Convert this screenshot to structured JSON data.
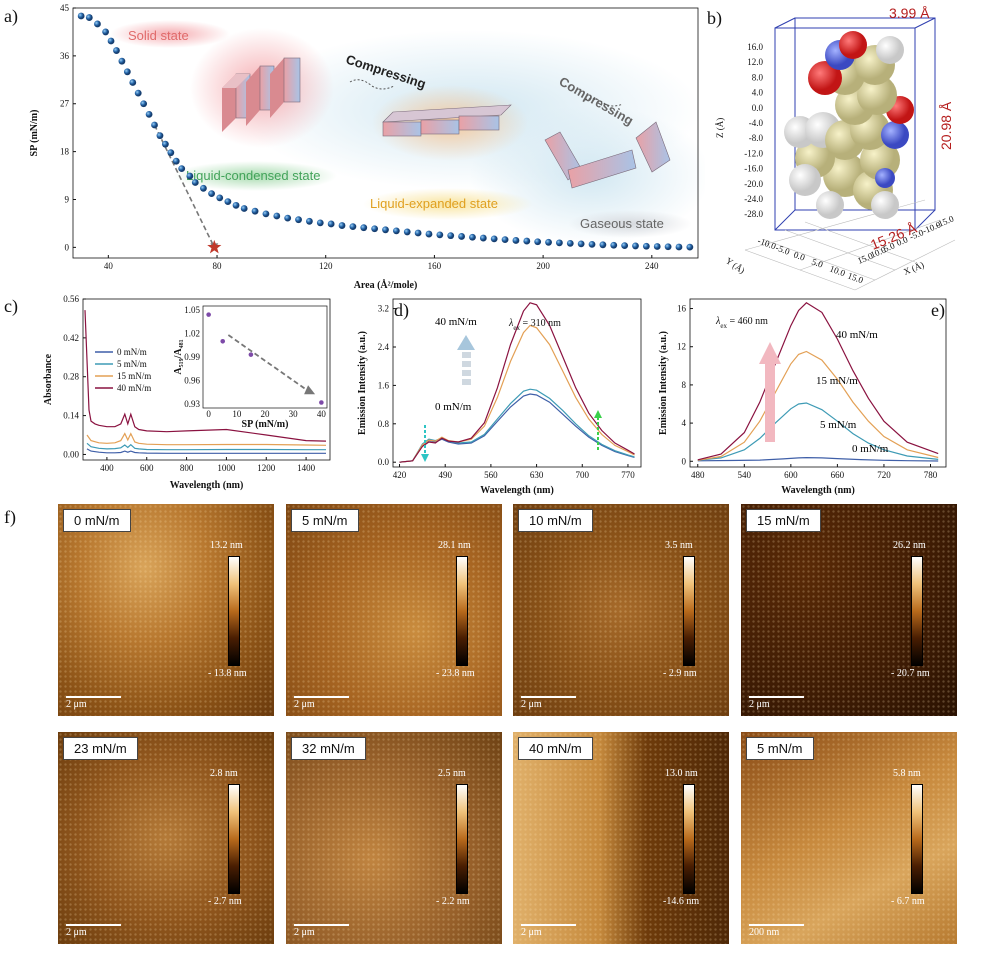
{
  "panel_labels": {
    "a": "a)",
    "b": "b)",
    "c": "c)",
    "d": "d)",
    "e": "e)",
    "f": "f)"
  },
  "colors": {
    "isotherm_marker": "#2a6cb0",
    "series_0": "#3f5fa8",
    "series_5": "#3e9bb5",
    "series_15": "#e3a055",
    "series_40": "#8a1240",
    "star": "#c0392b"
  },
  "chart_data": [
    {
      "id": "a",
      "type": "scatter",
      "xlabel": "Area (Å²/mole)",
      "ylabel": "SP (mN/m)",
      "xlim": [
        27,
        257
      ],
      "ylim": [
        -2,
        45
      ],
      "xticks": [
        40,
        80,
        120,
        160,
        200,
        240
      ],
      "yticks": [
        0,
        9,
        18,
        27,
        36,
        45
      ],
      "points": [
        [
          30,
          43.5
        ],
        [
          33,
          43.2
        ],
        [
          36,
          42
        ],
        [
          39,
          40.5
        ],
        [
          41,
          38.8
        ],
        [
          43,
          37
        ],
        [
          45,
          35
        ],
        [
          47,
          33
        ],
        [
          49,
          31
        ],
        [
          51,
          29
        ],
        [
          53,
          27
        ],
        [
          55,
          25
        ],
        [
          57,
          23
        ],
        [
          59,
          21
        ],
        [
          61,
          19.4
        ],
        [
          63,
          17.8
        ],
        [
          65,
          16.2
        ],
        [
          67,
          14.8
        ],
        [
          70,
          13.4
        ],
        [
          72,
          12.2
        ],
        [
          75,
          11.1
        ],
        [
          78,
          10.1
        ],
        [
          81,
          9.3
        ],
        [
          84,
          8.6
        ],
        [
          87,
          7.9
        ],
        [
          90,
          7.3
        ],
        [
          94,
          6.8
        ],
        [
          98,
          6.3
        ],
        [
          102,
          5.9
        ],
        [
          106,
          5.5
        ],
        [
          110,
          5.2
        ],
        [
          114,
          4.9
        ],
        [
          118,
          4.6
        ],
        [
          122,
          4.4
        ],
        [
          126,
          4.1
        ],
        [
          130,
          3.9
        ],
        [
          134,
          3.7
        ],
        [
          138,
          3.5
        ],
        [
          142,
          3.3
        ],
        [
          146,
          3.1
        ],
        [
          150,
          2.9
        ],
        [
          154,
          2.7
        ],
        [
          158,
          2.5
        ],
        [
          162,
          2.35
        ],
        [
          166,
          2.2
        ],
        [
          170,
          2.05
        ],
        [
          174,
          1.9
        ],
        [
          178,
          1.75
        ],
        [
          182,
          1.6
        ],
        [
          186,
          1.45
        ],
        [
          190,
          1.3
        ],
        [
          194,
          1.18
        ],
        [
          198,
          1.06
        ],
        [
          202,
          0.95
        ],
        [
          206,
          0.85
        ],
        [
          210,
          0.75
        ],
        [
          214,
          0.65
        ],
        [
          218,
          0.56
        ],
        [
          222,
          0.48
        ],
        [
          226,
          0.4
        ],
        [
          230,
          0.33
        ],
        [
          234,
          0.27
        ],
        [
          238,
          0.21
        ],
        [
          242,
          0.16
        ],
        [
          246,
          0.11
        ],
        [
          250,
          0.07
        ],
        [
          254,
          0.04
        ]
      ],
      "extrapolation_point": [
        79,
        0
      ],
      "state_labels": [
        "Solid state",
        "Liquid-condensed state",
        "Liquid-expanded state",
        "Gaseous state"
      ],
      "annotations": [
        "Compressing",
        "Compressing"
      ]
    },
    {
      "id": "b",
      "type": "diagram",
      "dims": [
        "3.99 Å",
        "20.98 Å",
        "15.26 Å"
      ],
      "zlabel": "Z (Å)",
      "xlabel": "X (Å)",
      "ylabel": "Y (Å)",
      "zticks": [
        "16.0",
        "12.0",
        "8.0",
        "4.0",
        "0.0",
        "-4.0",
        "-8.0",
        "-12.0",
        "-16.0",
        "-20.0",
        "-24.0",
        "-28.0"
      ],
      "xticks": [
        "-15.0",
        "-10.0",
        "-5.0",
        "0.0",
        "5.0",
        "10.0",
        "15.0"
      ],
      "yticks": [
        "-10.0",
        "-5.0",
        "0.0",
        "5.0",
        "10.0",
        "15.0"
      ]
    },
    {
      "id": "c",
      "type": "line",
      "xlabel": "Wavelength (nm)",
      "ylabel": "Absorbance",
      "xlim": [
        280,
        1520
      ],
      "ylim": [
        -0.02,
        0.56
      ],
      "xticks": [
        400,
        600,
        800,
        1000,
        1200,
        1400
      ],
      "yticks": [
        "0.00",
        "0.14",
        "0.28",
        "0.42",
        "0.56"
      ],
      "legend": [
        "0 mN/m",
        "5 mN/m",
        "15 mN/m",
        "40 mN/m"
      ],
      "series": [
        {
          "name": "0 mN/m",
          "x": [
            300,
            320,
            360,
            400,
            440,
            470,
            490,
            505,
            520,
            540,
            560,
            600,
            700,
            800,
            1000,
            1200,
            1400,
            1500
          ],
          "y": [
            0.02,
            0.012,
            0.008,
            0.006,
            0.006,
            0.007,
            0.012,
            0.008,
            0.012,
            0.007,
            0.006,
            0.005,
            0.004,
            0.004,
            0.004,
            0.004,
            0.004,
            0.004
          ]
        },
        {
          "name": "5 mN/m",
          "x": [
            300,
            320,
            360,
            400,
            440,
            470,
            490,
            505,
            520,
            540,
            560,
            600,
            700,
            800,
            1000,
            1200,
            1400,
            1500
          ],
          "y": [
            0.04,
            0.028,
            0.022,
            0.02,
            0.021,
            0.024,
            0.034,
            0.025,
            0.035,
            0.022,
            0.02,
            0.018,
            0.017,
            0.017,
            0.018,
            0.018,
            0.017,
            0.017
          ]
        },
        {
          "name": "15 mN/m",
          "x": [
            300,
            320,
            360,
            400,
            440,
            470,
            490,
            505,
            520,
            540,
            560,
            600,
            700,
            800,
            1000,
            1200,
            1400,
            1500
          ],
          "y": [
            0.07,
            0.05,
            0.042,
            0.04,
            0.042,
            0.05,
            0.075,
            0.052,
            0.075,
            0.045,
            0.04,
            0.037,
            0.035,
            0.035,
            0.036,
            0.036,
            0.034,
            0.033
          ]
        },
        {
          "name": "40 mN/m",
          "x": [
            290,
            300,
            310,
            320,
            340,
            360,
            400,
            440,
            470,
            490,
            505,
            520,
            540,
            560,
            600,
            700,
            800,
            1000,
            1200,
            1400,
            1500
          ],
          "y": [
            0.52,
            0.34,
            0.16,
            0.12,
            0.11,
            0.105,
            0.1,
            0.1,
            0.11,
            0.145,
            0.11,
            0.145,
            0.1,
            0.09,
            0.085,
            0.082,
            0.085,
            0.09,
            0.07,
            0.05,
            0.048
          ]
        }
      ],
      "inset": {
        "xlabel": "SP (mN/m)",
        "ylabel": "A₅₁₉/A₄₈₁",
        "xlim": [
          -2,
          42
        ],
        "ylim": [
          0.925,
          1.055
        ],
        "xticks": [
          0,
          10,
          20,
          30,
          40
        ],
        "yticks": [
          "0.93",
          "0.96",
          "0.99",
          "1.02",
          "1.05"
        ],
        "points": [
          [
            0,
            1.044
          ],
          [
            5,
            1.01
          ],
          [
            15,
            0.993
          ],
          [
            40,
            0.932
          ]
        ]
      }
    },
    {
      "id": "d",
      "type": "line",
      "xlabel": "Wavelength (nm)",
      "ylabel": "Emission Intensity (a.u.)",
      "annotation": "λex = 310 nm",
      "ex_symbol": "λ",
      "ex_sub": "ex",
      "ex_value": " = 310 nm",
      "xlim": [
        410,
        790
      ],
      "ylim": [
        -0.1,
        3.4
      ],
      "xticks": [
        420,
        490,
        560,
        630,
        700,
        770
      ],
      "yticks": [
        "0.0",
        "0.8",
        "1.6",
        "2.4",
        "3.2"
      ],
      "labels": [
        "40 mN/m",
        "0 mN/m"
      ],
      "series": [
        {
          "name": "0 mN/m",
          "x": [
            420,
            440,
            455,
            465,
            475,
            485,
            495,
            510,
            530,
            550,
            570,
            590,
            610,
            620,
            630,
            650,
            670,
            690,
            710,
            730,
            750,
            770,
            780
          ],
          "y": [
            0.0,
            0.03,
            0.35,
            0.45,
            0.42,
            0.48,
            0.42,
            0.38,
            0.4,
            0.55,
            0.85,
            1.15,
            1.38,
            1.42,
            1.4,
            1.25,
            1.0,
            0.75,
            0.52,
            0.35,
            0.22,
            0.14,
            0.1
          ]
        },
        {
          "name": "5 mN/m",
          "x": [
            420,
            440,
            455,
            465,
            475,
            485,
            495,
            510,
            530,
            550,
            570,
            590,
            610,
            620,
            630,
            650,
            670,
            690,
            710,
            730,
            750,
            770,
            780
          ],
          "y": [
            0.0,
            0.03,
            0.38,
            0.48,
            0.45,
            0.5,
            0.44,
            0.4,
            0.42,
            0.58,
            0.9,
            1.22,
            1.48,
            1.52,
            1.5,
            1.33,
            1.08,
            0.8,
            0.55,
            0.37,
            0.24,
            0.15,
            0.11
          ]
        },
        {
          "name": "15 mN/m",
          "x": [
            420,
            440,
            455,
            465,
            475,
            485,
            495,
            510,
            530,
            550,
            570,
            590,
            610,
            620,
            630,
            650,
            670,
            690,
            710,
            730,
            750,
            770,
            780
          ],
          "y": [
            0.0,
            0.03,
            0.36,
            0.46,
            0.44,
            0.52,
            0.45,
            0.42,
            0.48,
            0.75,
            1.35,
            2.1,
            2.7,
            2.85,
            2.8,
            2.45,
            1.9,
            1.35,
            0.9,
            0.58,
            0.35,
            0.22,
            0.15
          ]
        },
        {
          "name": "40 mN/m",
          "x": [
            420,
            440,
            455,
            465,
            475,
            485,
            495,
            510,
            530,
            550,
            570,
            590,
            610,
            620,
            630,
            650,
            670,
            690,
            710,
            730,
            750,
            770,
            780
          ],
          "y": [
            0.0,
            0.03,
            0.33,
            0.42,
            0.4,
            0.5,
            0.44,
            0.42,
            0.5,
            0.82,
            1.55,
            2.45,
            3.15,
            3.32,
            3.28,
            2.85,
            2.2,
            1.55,
            1.02,
            0.66,
            0.4,
            0.25,
            0.17
          ]
        }
      ]
    },
    {
      "id": "e",
      "type": "line",
      "xlabel": "Wavelength (nm)",
      "ylabel": "Emission Intensity (a.u.)",
      "annotation": "λex = 460 nm",
      "ex_symbol": "λ",
      "ex_sub": "ex",
      "ex_value": " = 460 nm",
      "xlim": [
        470,
        800
      ],
      "ylim": [
        -0.6,
        17
      ],
      "xticks": [
        480,
        540,
        600,
        660,
        720,
        780
      ],
      "yticks": [
        "0",
        "4",
        "8",
        "12",
        "16"
      ],
      "labels": [
        "40 mN/m",
        "15 mN/m",
        "5 mN/m",
        "0 mN/m"
      ],
      "series": [
        {
          "name": "0 mN/m",
          "x": [
            480,
            520,
            560,
            590,
            610,
            620,
            640,
            660,
            690,
            720,
            750,
            790
          ],
          "y": [
            0.05,
            0.08,
            0.12,
            0.25,
            0.35,
            0.38,
            0.35,
            0.28,
            0.18,
            0.1,
            0.06,
            0.03
          ]
        },
        {
          "name": "5 mN/m",
          "x": [
            480,
            510,
            540,
            560,
            580,
            600,
            610,
            620,
            640,
            660,
            680,
            700,
            720,
            750,
            790
          ],
          "y": [
            0.1,
            0.35,
            1.2,
            2.4,
            4.0,
            5.5,
            6.0,
            6.1,
            5.4,
            4.2,
            2.9,
            1.9,
            1.2,
            0.55,
            0.2
          ]
        },
        {
          "name": "15 mN/m",
          "x": [
            480,
            510,
            540,
            560,
            580,
            600,
            610,
            620,
            640,
            660,
            680,
            700,
            720,
            750,
            790
          ],
          "y": [
            0.1,
            0.5,
            2.0,
            4.2,
            7.2,
            10.2,
            11.2,
            11.5,
            10.6,
            8.6,
            6.2,
            4.2,
            2.6,
            1.2,
            0.4
          ]
        },
        {
          "name": "40 mN/m",
          "x": [
            480,
            510,
            540,
            560,
            580,
            600,
            610,
            620,
            640,
            660,
            680,
            700,
            720,
            750,
            790
          ],
          "y": [
            0.15,
            0.75,
            3.0,
            6.2,
            10.2,
            14.2,
            15.8,
            16.6,
            15.6,
            12.8,
            9.5,
            6.6,
            4.2,
            2.0,
            0.8
          ]
        }
      ]
    }
  ],
  "afm_images": [
    {
      "label": "0 mN/m",
      "cb_top": "13.2 nm",
      "cb_bottom": "- 13.8 nm",
      "scale": "2 μm"
    },
    {
      "label": "5 mN/m",
      "cb_top": "28.1 nm",
      "cb_bottom": "- 23.8 nm",
      "scale": "2 μm"
    },
    {
      "label": "10 mN/m",
      "cb_top": "3.5 nm",
      "cb_bottom": "- 2.9 nm",
      "scale": "2 μm"
    },
    {
      "label": "15 mN/m",
      "cb_top": "26.2 nm",
      "cb_bottom": "- 20.7 nm",
      "scale": "2 μm"
    },
    {
      "label": "23 mN/m",
      "cb_top": "2.8 nm",
      "cb_bottom": "- 2.7 nm",
      "scale": "2 μm"
    },
    {
      "label": "32 mN/m",
      "cb_top": "2.5 nm",
      "cb_bottom": "- 2.2 nm",
      "scale": "2 μm"
    },
    {
      "label": "40 mN/m",
      "cb_top": "13.0 nm",
      "cb_bottom": "-14.6 nm",
      "scale": "2 μm"
    },
    {
      "label": "5 mN/m",
      "cb_top": "5.8 nm",
      "cb_bottom": "- 6.7 nm",
      "scale": "200 nm"
    }
  ]
}
